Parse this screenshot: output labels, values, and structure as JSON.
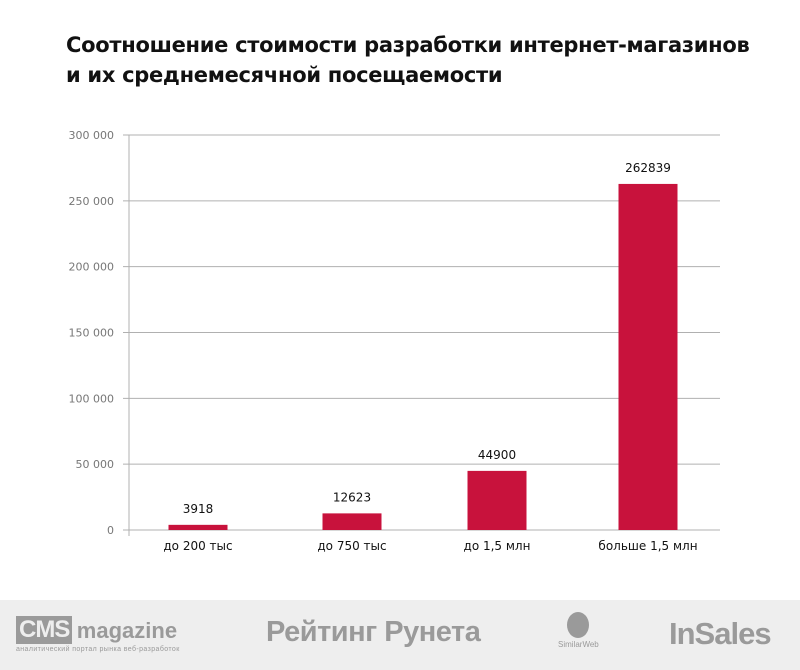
{
  "chart_data": {
    "type": "bar",
    "title_lines": [
      "Соотношение стоимости разработки интернет-магазинов",
      "и их среднемесячной посещаемости"
    ],
    "categories": [
      "до 200 тыс",
      "до 750 тыс",
      "до 1,5 млн",
      "больше 1,5 млн"
    ],
    "values": [
      3918,
      12623,
      44900,
      262839
    ],
    "data_labels": [
      "3918",
      "12623",
      "44900",
      "262839"
    ],
    "ylim": [
      0,
      300000
    ],
    "yticks": [
      0,
      50000,
      100000,
      150000,
      200000,
      250000,
      300000
    ],
    "ytick_labels": [
      "0",
      "50 000",
      "100 000",
      "150 000",
      "200 000",
      "250 000",
      "300 000"
    ],
    "xlabel": "",
    "ylabel": "",
    "grid": true,
    "bar_color": "#c8123c"
  },
  "footer": {
    "cms_logo": "CMS",
    "cms_magazine": "magazine",
    "cms_tagline": "аналитический портал рынка веб-разработок",
    "rating": "Рейтинг Рунета",
    "similarweb": "SimilarWeb",
    "insales": "InSales"
  }
}
